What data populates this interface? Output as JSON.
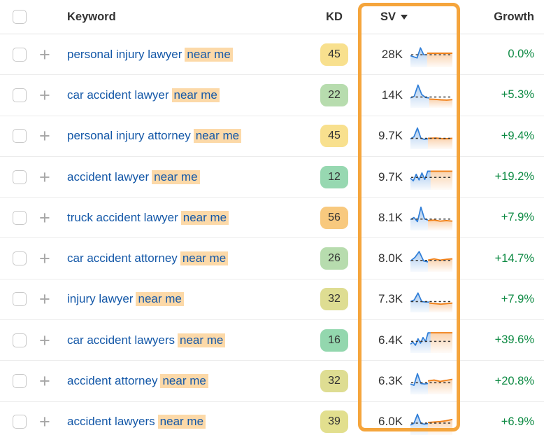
{
  "colors": {
    "sv_highlight_border": "#f5a53c",
    "keyword_link": "#1458a8",
    "keyword_highlight_bg": "#fcd9a8",
    "growth_green": "#0d8a43",
    "spark_blue": "#2f7ed8",
    "spark_orange": "#f08018",
    "spark_dash": "#3a3a3a"
  },
  "header": {
    "keyword": "Keyword",
    "kd": "KD",
    "sv": "SV",
    "growth": "Growth"
  },
  "rows": [
    {
      "keyword": "personal injury lawyer",
      "highlight": "near me",
      "kd": "45",
      "kd_color": "#f8e08e",
      "sv": "28K",
      "growth": "0.0%",
      "spark": {
        "blue": [
          55,
          60,
          64,
          25,
          52,
          52
        ],
        "orange": [
          46,
          46,
          46,
          46
        ],
        "dash": 52,
        "blue_end": 40
      }
    },
    {
      "keyword": "car accident lawyer",
      "highlight": "near me",
      "kd": "22",
      "kd_color": "#b7dcae",
      "sv": "14K",
      "growth": "+5.3%",
      "spark": {
        "blue": [
          62,
          55,
          12,
          48,
          60,
          62
        ],
        "orange": [
          66,
          67,
          69,
          70,
          68
        ],
        "dash": 58,
        "blue_end": 45
      }
    },
    {
      "keyword": "personal injury attorney",
      "highlight": "near me",
      "kd": "45",
      "kd_color": "#f8e08e",
      "sv": "9.7K",
      "growth": "+9.4%",
      "spark": {
        "blue": [
          60,
          52,
          18,
          58,
          62,
          60
        ],
        "orange": [
          58,
          57,
          60,
          58
        ],
        "dash": 58,
        "blue_end": 42
      }
    },
    {
      "keyword": "accident lawyer",
      "highlight": "near me",
      "kd": "12",
      "kd_color": "#97d8b1",
      "sv": "9.7K",
      "growth": "+19.2%",
      "spark": {
        "blue": [
          55,
          65,
          40,
          62,
          35,
          60,
          28,
          28
        ],
        "orange": [
          28,
          28,
          28,
          28
        ],
        "dash": 52,
        "blue_end": 48
      }
    },
    {
      "keyword": "truck accident lawyer",
      "highlight": "near me",
      "kd": "56",
      "kd_color": "#f8c97e",
      "sv": "8.1K",
      "growth": "+7.9%",
      "spark": {
        "blue": [
          58,
          50,
          66,
          10,
          55,
          60
        ],
        "orange": [
          62,
          60,
          64,
          62,
          64
        ],
        "dash": 56,
        "blue_end": 42
      }
    },
    {
      "keyword": "car accident attorney",
      "highlight": "near me",
      "kd": "26",
      "kd_color": "#b7dcae",
      "sv": "8.0K",
      "growth": "+14.7%",
      "spark": {
        "blue": [
          58,
          45,
          22,
          58,
          62
        ],
        "orange": [
          55,
          50,
          55,
          52,
          50
        ],
        "dash": 56,
        "blue_end": 42
      }
    },
    {
      "keyword": "injury lawyer",
      "highlight": "near me",
      "kd": "32",
      "kd_color": "#dedd92",
      "sv": "7.3K",
      "growth": "+7.9%",
      "spark": {
        "blue": [
          58,
          52,
          25,
          58,
          60,
          60
        ],
        "orange": [
          64,
          66,
          68,
          66,
          64
        ],
        "dash": 58,
        "blue_end": 45
      }
    },
    {
      "keyword": "car accident lawyers",
      "highlight": "near me",
      "kd": "16",
      "kd_color": "#93d7ae",
      "sv": "6.4K",
      "growth": "+39.6%",
      "spark": {
        "blue": [
          66,
          58,
          70,
          45,
          62,
          40,
          55,
          22,
          22
        ],
        "orange": [
          22,
          22,
          22,
          22
        ],
        "dash": 55,
        "blue_end": 48
      }
    },
    {
      "keyword": "accident attorney",
      "highlight": "near me",
      "kd": "32",
      "kd_color": "#dedd92",
      "sv": "6.3K",
      "growth": "+20.8%",
      "spark": {
        "blue": [
          60,
          65,
          20,
          58,
          60,
          58
        ],
        "orange": [
          48,
          45,
          50,
          46,
          42
        ],
        "dash": 55,
        "blue_end": 42
      }
    },
    {
      "keyword": "accident lawyers",
      "highlight": "near me",
      "kd": "39",
      "kd_color": "#e2df8e",
      "sv": "6.0K",
      "growth": "+6.9%",
      "spark": {
        "blue": [
          62,
          55,
          20,
          55,
          58,
          56
        ],
        "orange": [
          52,
          50,
          48,
          45,
          40
        ],
        "dash": 54,
        "blue_end": 42
      }
    }
  ]
}
